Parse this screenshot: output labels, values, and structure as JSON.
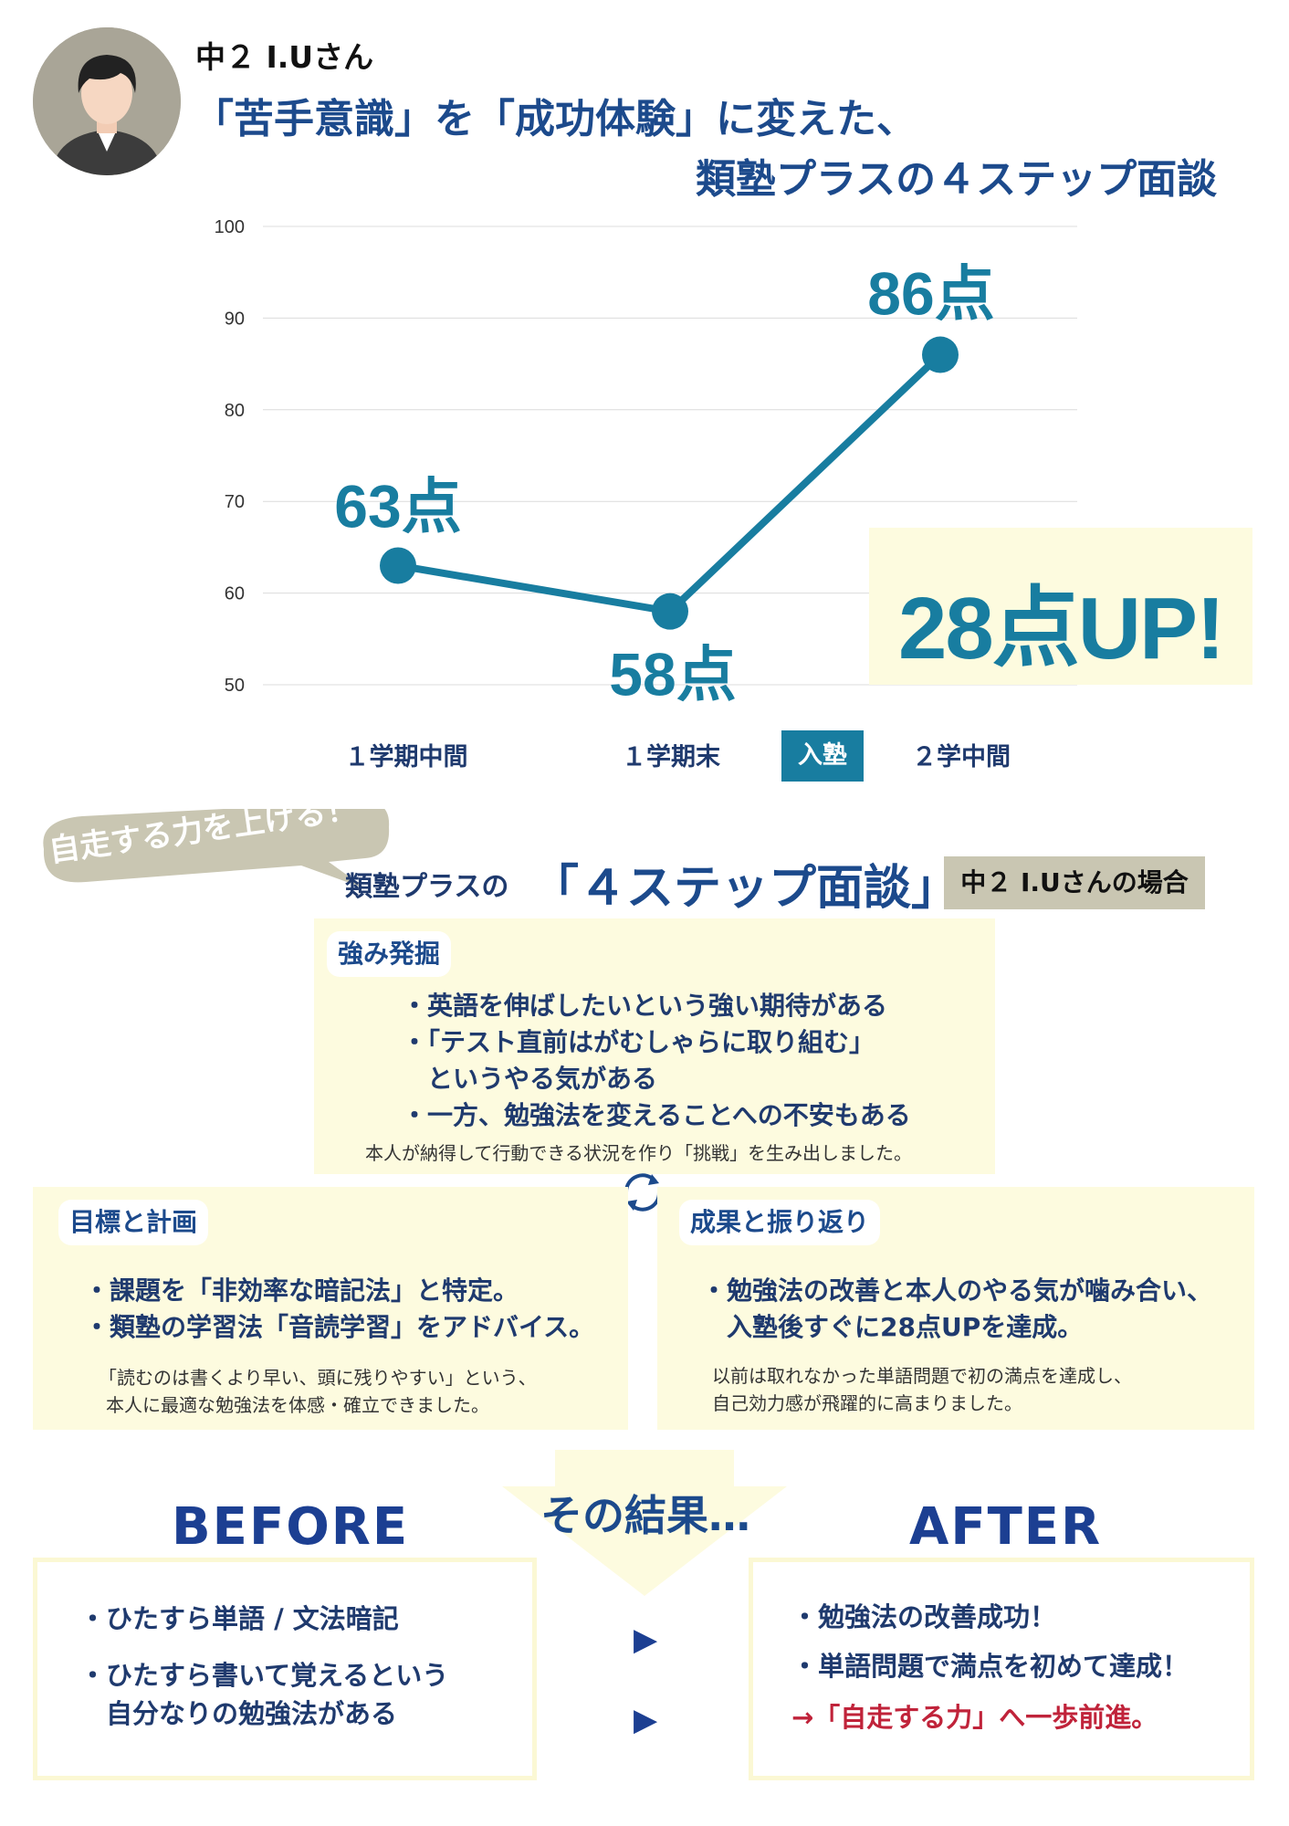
{
  "header": {
    "student": "中２ I.Uさん",
    "title_line1": "「苦手意識」を「成功体験」に変えた、",
    "title_line2": "類塾プラスの４ステップ面談"
  },
  "chart_data": {
    "type": "line",
    "categories": [
      "１学期中間",
      "１学期末",
      "２学中間"
    ],
    "values": [
      63,
      58,
      86
    ],
    "point_labels": [
      "63点",
      "58点",
      "86点"
    ],
    "yticks": [
      50,
      60,
      70,
      80,
      90,
      100
    ],
    "ylim": [
      50,
      100
    ],
    "grid": true,
    "color": "#187da0",
    "marker_label": "入塾",
    "callout": "28点UP!"
  },
  "section": {
    "bubble": "自走する力を上げる！",
    "title_a": "類塾プラスの",
    "title_b": "「４ステップ面談」",
    "case_tag": "中２ I.Uさんの場合"
  },
  "box1": {
    "tag": "強み発掘",
    "bullets": [
      "・英語を伸ばしたいという強い期待がある",
      "・「テスト直前はがむしゃらに取り組む」",
      "　というやる気がある",
      "・一方、勉強法を変えることへの不安もある"
    ],
    "note": "本人が納得して行動できる状況を作り「挑戦」を生み出しました。"
  },
  "box2": {
    "tag": "目標と計画",
    "bullets": [
      "・課題を「非効率な暗記法」と特定。",
      "・類塾の学習法「音読学習」をアドバイス。"
    ],
    "notes": [
      "「読むのは書くより早い、頭に残りやすい」という、",
      "本人に最適な勉強法を体感・確立できました。"
    ]
  },
  "box3": {
    "tag": "成果と振り返り",
    "bullets": [
      "・勉強法の改善と本人のやる気が噛み合い、",
      "　入塾後すぐに28点UPを達成。"
    ],
    "notes": [
      "以前は取れなかった単語問題で初の満点を達成し、",
      "自己効力感が飛躍的に高まりました。"
    ]
  },
  "result": {
    "label": "その結果…",
    "before_title": "BEFORE",
    "after_title": "AFTER",
    "before_items": [
      "・ひたすら単語 / 文法暗記",
      "・ひたすら書いて覚えるという",
      "　自分なりの勉強法がある"
    ],
    "after_items": [
      "・勉強法の改善成功！",
      "・単語問題で満点を初めて達成！",
      "→「自走する力」へ一歩前進。"
    ],
    "arrow": "▶"
  },
  "icons": {
    "avatar": "student-avatar-icon",
    "cycle": "refresh-cycle-icon"
  }
}
